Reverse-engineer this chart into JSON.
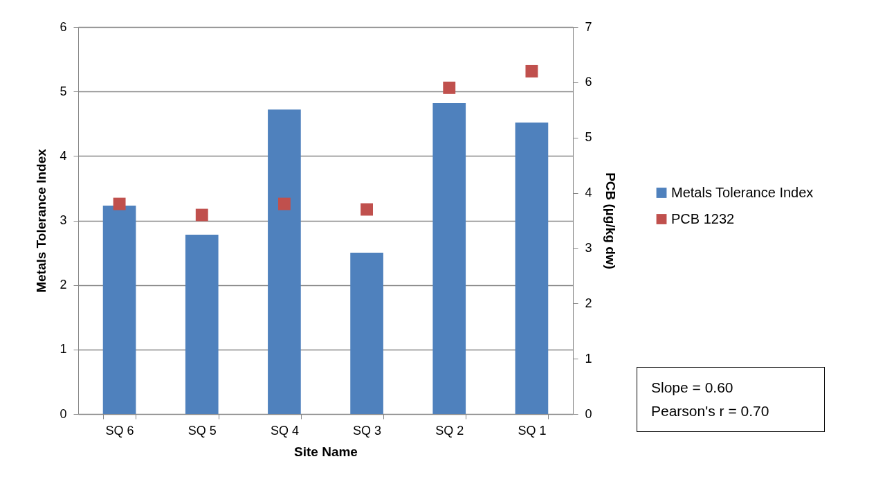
{
  "chart_data": {
    "type": "bar",
    "xlabel": "Site Name",
    "ylabel": "Metals Tolerance Index",
    "y2label": "PCB (µg/kg dw)",
    "categories": [
      "SQ 6",
      "SQ 5",
      "SQ 4",
      "SQ 3",
      "SQ 2",
      "SQ 1"
    ],
    "series": [
      {
        "name": "Metals Tolerance Index",
        "color": "#4f81bd",
        "values": [
          3.23,
          2.78,
          4.72,
          2.5,
          4.82,
          4.52
        ]
      },
      {
        "name": "PCB 1232",
        "type": "scatter",
        "axis": "y2",
        "color": "#c0504d",
        "values": [
          3.8,
          3.6,
          3.8,
          3.7,
          5.9,
          6.2
        ]
      }
    ],
    "ylim": [
      0,
      6
    ],
    "yticks": [
      0,
      1,
      2,
      3,
      4,
      5,
      6
    ],
    "y2lim": [
      0,
      7
    ],
    "y2ticks": [
      0,
      1,
      2,
      3,
      4,
      5,
      6,
      7
    ],
    "grid": "y",
    "legend": "right",
    "marker": "square",
    "annotations": [
      "Slope = 0.60",
      "Pearson's r = 0.70"
    ]
  }
}
